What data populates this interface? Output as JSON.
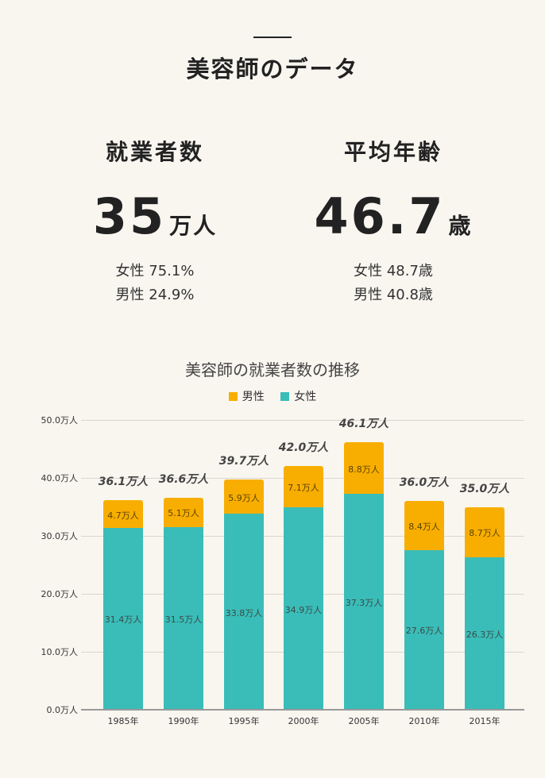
{
  "page": {
    "title": "美容師のデータ"
  },
  "stats": [
    {
      "heading": "就業者数",
      "value": "35",
      "unit": "万人",
      "female": "女性 75.1%",
      "male": "男性 24.9%"
    },
    {
      "heading": "平均年齢",
      "value": "46.7",
      "unit": "歳",
      "female": "女性 48.7歳",
      "male": "男性 40.8歳"
    }
  ],
  "colors": {
    "male": "#f8ae00",
    "female": "#3abdb8",
    "background": "#f9f6f0"
  },
  "chart_data": {
    "type": "bar",
    "stacked": true,
    "title": "美容師の就業者数の推移",
    "xlabel": "",
    "ylabel": "",
    "ylim": [
      0,
      50
    ],
    "yticks": [
      "0.0万人",
      "10.0万人",
      "20.0万人",
      "30.0万人",
      "40.0万人",
      "50.0万人"
    ],
    "grid": true,
    "legend_position": "top",
    "legend": [
      "男性",
      "女性"
    ],
    "categories": [
      "1985年",
      "1990年",
      "1995年",
      "2000年",
      "2005年",
      "2010年",
      "2015年"
    ],
    "series": [
      {
        "name": "女性",
        "color": "#3abdb8",
        "values": [
          31.4,
          31.5,
          33.8,
          34.9,
          37.3,
          27.6,
          26.3
        ],
        "labels": [
          "31.4万人",
          "31.5万人",
          "33.8万人",
          "34.9万人",
          "37.3万人",
          "27.6万人",
          "26.3万人"
        ]
      },
      {
        "name": "男性",
        "color": "#f8ae00",
        "values": [
          4.7,
          5.1,
          5.9,
          7.1,
          8.8,
          8.4,
          8.7
        ],
        "labels": [
          "4.7万人",
          "5.1万人",
          "5.9万人",
          "7.1万人",
          "8.8万人",
          "8.4万人",
          "8.7万人"
        ]
      }
    ],
    "totals": [
      36.1,
      36.6,
      39.7,
      42.0,
      46.1,
      36.0,
      35.0
    ],
    "total_labels": [
      "36.1万人",
      "36.6万人",
      "39.7万人",
      "42.0万人",
      "46.1万人",
      "36.0万人",
      "35.0万人"
    ]
  }
}
